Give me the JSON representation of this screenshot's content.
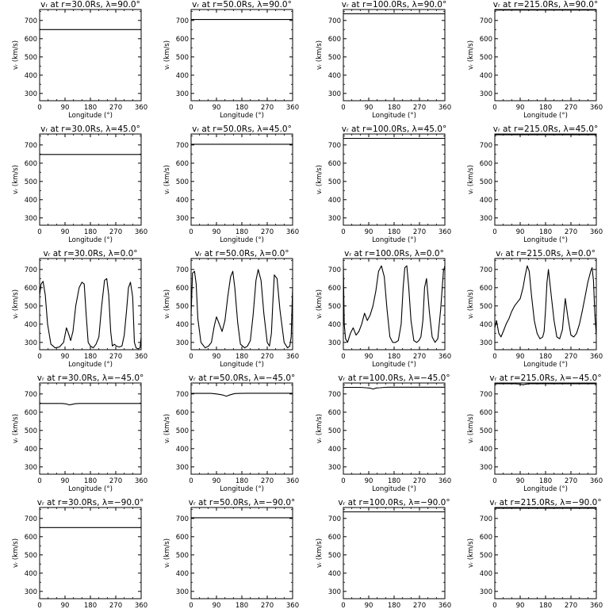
{
  "chart_data": {
    "type": "line",
    "layout": {
      "rows": 5,
      "cols": 4
    },
    "xlabel": "Longitude (°)",
    "ylabel": "vᵣ (km/s)",
    "xlim": [
      0,
      360
    ],
    "ylim": [
      260,
      760
    ],
    "xticks": [
      0,
      90,
      180,
      270,
      360
    ],
    "yticks": [
      300,
      400,
      500,
      600,
      700
    ],
    "panels": [
      {
        "title": "vᵣ at r=30.0Rs, λ=90.0°",
        "x": [
          0,
          360
        ],
        "y": [
          650,
          650
        ]
      },
      {
        "title": "vᵣ at r=50.0Rs, λ=90.0°",
        "x": [
          0,
          360
        ],
        "y": [
          705,
          705
        ]
      },
      {
        "title": "vᵣ at r=100.0Rs, λ=90.0°",
        "x": [
          0,
          360
        ],
        "y": [
          737,
          737
        ]
      },
      {
        "title": "vᵣ at r=215.0Rs, λ=90.0°",
        "x": [
          0,
          360
        ],
        "y": [
          757,
          757
        ]
      },
      {
        "title": "vᵣ at r=30.0Rs, λ=45.0°",
        "x": [
          0,
          360
        ],
        "y": [
          648,
          648
        ]
      },
      {
        "title": "vᵣ at r=50.0Rs, λ=45.0°",
        "x": [
          0,
          360
        ],
        "y": [
          704,
          704
        ]
      },
      {
        "title": "vᵣ at r=100.0Rs, λ=45.0°",
        "x": [
          0,
          360
        ],
        "y": [
          736,
          736
        ]
      },
      {
        "title": "vᵣ at r=215.0Rs, λ=45.0°",
        "x": [
          0,
          360
        ],
        "y": [
          756,
          756
        ]
      },
      {
        "title": "vᵣ at r=30.0Rs, λ=0.0°",
        "x": [
          0,
          5,
          12,
          20,
          28,
          40,
          55,
          70,
          85,
          95,
          102,
          110,
          118,
          128,
          140,
          150,
          158,
          165,
          172,
          180,
          190,
          200,
          210,
          220,
          230,
          238,
          245,
          252,
          258,
          265,
          272,
          282,
          292,
          300,
          308,
          315,
          322,
          330,
          336,
          342,
          350,
          356,
          360
        ],
        "y": [
          560,
          620,
          635,
          560,
          400,
          290,
          270,
          275,
          300,
          380,
          350,
          310,
          360,
          500,
          600,
          630,
          620,
          450,
          300,
          280,
          270,
          290,
          330,
          500,
          640,
          650,
          560,
          360,
          280,
          290,
          280,
          275,
          280,
          340,
          470,
          600,
          630,
          550,
          300,
          270,
          265,
          270,
          330
        ]
      },
      {
        "title": "vᵣ at r=50.0Rs, λ=0.0°",
        "x": [
          0,
          5,
          12,
          18,
          24,
          35,
          50,
          62,
          72,
          82,
          90,
          100,
          110,
          120,
          130,
          140,
          148,
          155,
          165,
          175,
          190,
          200,
          210,
          220,
          230,
          238,
          248,
          258,
          270,
          278,
          285,
          290,
          295,
          305,
          315,
          330,
          342,
          350,
          355,
          360
        ],
        "y": [
          450,
          680,
          690,
          620,
          430,
          300,
          270,
          280,
          300,
          390,
          440,
          400,
          360,
          420,
          550,
          660,
          690,
          600,
          410,
          290,
          270,
          280,
          310,
          450,
          640,
          700,
          640,
          460,
          300,
          280,
          350,
          520,
          670,
          650,
          480,
          300,
          270,
          280,
          330,
          600
        ]
      },
      {
        "title": "vᵣ at r=100.0Rs, λ=0.0°",
        "x": [
          0,
          3,
          8,
          15,
          25,
          35,
          45,
          55,
          65,
          75,
          85,
          95,
          105,
          115,
          125,
          135,
          145,
          155,
          165,
          175,
          185,
          195,
          205,
          212,
          218,
          225,
          232,
          240,
          250,
          260,
          268,
          275,
          282,
          288,
          295,
          305,
          315,
          325,
          335,
          345,
          355,
          360
        ],
        "y": [
          720,
          400,
          320,
          300,
          350,
          380,
          340,
          360,
          400,
          460,
          420,
          450,
          500,
          580,
          690,
          720,
          660,
          480,
          330,
          300,
          300,
          310,
          400,
          600,
          710,
          720,
          600,
          420,
          310,
          300,
          310,
          330,
          420,
          600,
          650,
          470,
          330,
          300,
          320,
          480,
          690,
          720
        ]
      },
      {
        "title": "vᵣ at r=215.0Rs, λ=0.0°",
        "x": [
          0,
          6,
          14,
          22,
          30,
          40,
          50,
          60,
          70,
          80,
          90,
          100,
          108,
          115,
          122,
          130,
          140,
          150,
          160,
          170,
          175,
          180,
          185,
          190,
          200,
          210,
          220,
          230,
          240,
          245,
          250,
          260,
          270,
          280,
          290,
          300,
          310,
          320,
          330,
          340,
          345,
          350,
          355,
          360
        ],
        "y": [
          380,
          420,
          350,
          330,
          360,
          400,
          430,
          470,
          500,
          520,
          540,
          600,
          670,
          720,
          690,
          560,
          420,
          350,
          320,
          330,
          360,
          480,
          630,
          700,
          560,
          420,
          330,
          320,
          370,
          460,
          540,
          430,
          340,
          330,
          350,
          400,
          470,
          550,
          630,
          690,
          710,
          640,
          450,
          340
        ]
      },
      {
        "title": "vᵣ at r=30.0Rs, λ=−45.0°",
        "x": [
          0,
          80,
          95,
          105,
          115,
          125,
          140,
          360
        ],
        "y": [
          648,
          648,
          645,
          640,
          643,
          646,
          648,
          648
        ]
      },
      {
        "title": "vᵣ at r=50.0Rs, λ=−45.0°",
        "x": [
          0,
          70,
          90,
          110,
          125,
          140,
          155,
          175,
          200,
          360
        ],
        "y": [
          703,
          703,
          700,
          695,
          688,
          696,
          702,
          703,
          704,
          704
        ]
      },
      {
        "title": "vᵣ at r=100.0Rs, λ=−45.0°",
        "x": [
          0,
          60,
          80,
          95,
          105,
          118,
          130,
          145,
          160,
          360
        ],
        "y": [
          736,
          736,
          734,
          732,
          727,
          733,
          734,
          736,
          737,
          737
        ]
      },
      {
        "title": "vᵣ at r=215.0Rs, λ=−45.0°",
        "x": [
          0,
          70,
          90,
          100,
          110,
          125,
          360
        ],
        "y": [
          756,
          756,
          754,
          750,
          754,
          756,
          756
        ]
      },
      {
        "title": "vᵣ at r=30.0Rs, λ=−90.0°",
        "x": [
          0,
          360
        ],
        "y": [
          650,
          650
        ]
      },
      {
        "title": "vᵣ at r=50.0Rs, λ=−90.0°",
        "x": [
          0,
          360
        ],
        "y": [
          704,
          704
        ]
      },
      {
        "title": "vᵣ at r=100.0Rs, λ=−90.0°",
        "x": [
          0,
          360
        ],
        "y": [
          736,
          736
        ]
      },
      {
        "title": "vᵣ at r=215.0Rs, λ=−90.0°",
        "x": [
          0,
          360
        ],
        "y": [
          756,
          756
        ]
      }
    ]
  }
}
